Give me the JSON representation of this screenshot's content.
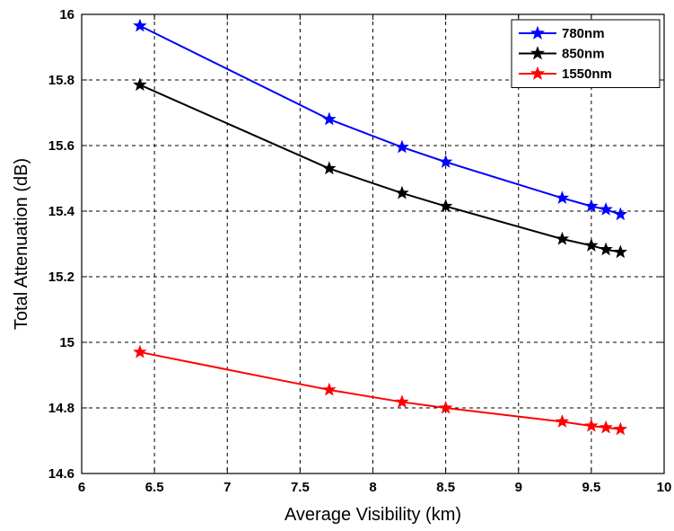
{
  "chart_data": {
    "type": "line",
    "title": "",
    "xlabel": "Average Visibility (km)",
    "ylabel": "Total Attenuation (dB)",
    "xlim": [
      6,
      10
    ],
    "ylim": [
      14.6,
      16
    ],
    "xticks": [
      6,
      6.5,
      7,
      7.5,
      8,
      8.5,
      9,
      9.5,
      10
    ],
    "xtick_labels": [
      "6",
      "6.5",
      "7",
      "7.5",
      "8",
      "8.5",
      "9",
      "9.5",
      "10"
    ],
    "yticks": [
      14.6,
      14.8,
      15,
      15.2,
      15.4,
      15.6,
      15.8,
      16
    ],
    "ytick_labels": [
      "14.6",
      "14.8",
      "15",
      "15.2",
      "15.4",
      "15.6",
      "15.8",
      "16"
    ],
    "grid": true,
    "legend_position": "top-right",
    "x": [
      6.4,
      7.7,
      8.2,
      8.5,
      9.3,
      9.5,
      9.6,
      9.7
    ],
    "series": [
      {
        "name": "780nm",
        "color": "#0000ff",
        "marker": "star",
        "values": [
          15.965,
          15.68,
          15.595,
          15.55,
          15.44,
          15.415,
          15.405,
          15.39
        ]
      },
      {
        "name": "850nm",
        "color": "#000000",
        "marker": "star",
        "values": [
          15.785,
          15.53,
          15.455,
          15.415,
          15.315,
          15.295,
          15.283,
          15.275
        ]
      },
      {
        "name": "1550nm",
        "color": "#ff0000",
        "marker": "star",
        "values": [
          14.97,
          14.855,
          14.818,
          14.8,
          14.758,
          14.745,
          14.74,
          14.735
        ]
      }
    ]
  }
}
